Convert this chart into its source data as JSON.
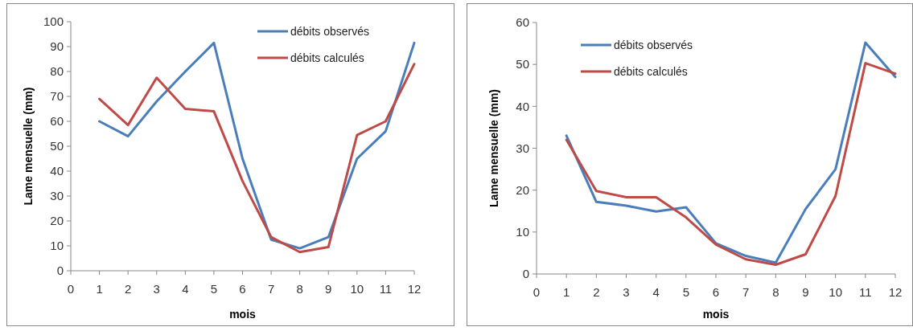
{
  "chart_data": [
    {
      "type": "line",
      "xlabel": "mois",
      "ylabel": "Lame mensuelle (mm)",
      "x": [
        1,
        2,
        3,
        4,
        5,
        6,
        7,
        8,
        9,
        10,
        11,
        12
      ],
      "xlim": [
        0,
        12
      ],
      "xticks": [
        0,
        1,
        2,
        3,
        4,
        5,
        6,
        7,
        8,
        9,
        10,
        11,
        12
      ],
      "ylim": [
        0,
        100
      ],
      "yticks": [
        0,
        10,
        20,
        30,
        40,
        50,
        60,
        70,
        80,
        90,
        100
      ],
      "grid": false,
      "legend": "top right",
      "line_style": "solid",
      "series": [
        {
          "name": "débits observés",
          "color": "#4a7ebb",
          "values": [
            60,
            54,
            68,
            80,
            91.5,
            45,
            12.5,
            9,
            13.5,
            45,
            56,
            91.5
          ]
        },
        {
          "name": "débits calculés",
          "color": "#be4b48",
          "values": [
            69,
            58.5,
            77.5,
            65,
            64,
            36,
            13.5,
            7.5,
            9.5,
            54.5,
            60,
            83
          ]
        }
      ]
    },
    {
      "type": "line",
      "xlabel": "mois",
      "ylabel": "Lame mensuelle (mm)",
      "x": [
        1,
        2,
        3,
        4,
        5,
        6,
        7,
        8,
        9,
        10,
        11,
        12
      ],
      "xlim": [
        0,
        12
      ],
      "xticks": [
        0,
        1,
        2,
        3,
        4,
        5,
        6,
        7,
        8,
        9,
        10,
        11,
        12
      ],
      "ylim": [
        0,
        60
      ],
      "yticks": [
        0,
        10,
        20,
        30,
        40,
        50,
        60
      ],
      "grid": false,
      "legend": "top left",
      "line_style": "solid",
      "series": [
        {
          "name": "débits observés",
          "color": "#4a7ebb",
          "values": [
            33,
            17.2,
            16.3,
            14.9,
            15.9,
            7.3,
            4.3,
            2.7,
            15.5,
            25,
            55.2,
            47
          ]
        },
        {
          "name": "débits calculés",
          "color": "#be4b48",
          "values": [
            32,
            19.8,
            18.3,
            18.3,
            13.5,
            7,
            3.5,
            2.2,
            4.7,
            18.6,
            50.3,
            47.8
          ]
        }
      ]
    }
  ]
}
